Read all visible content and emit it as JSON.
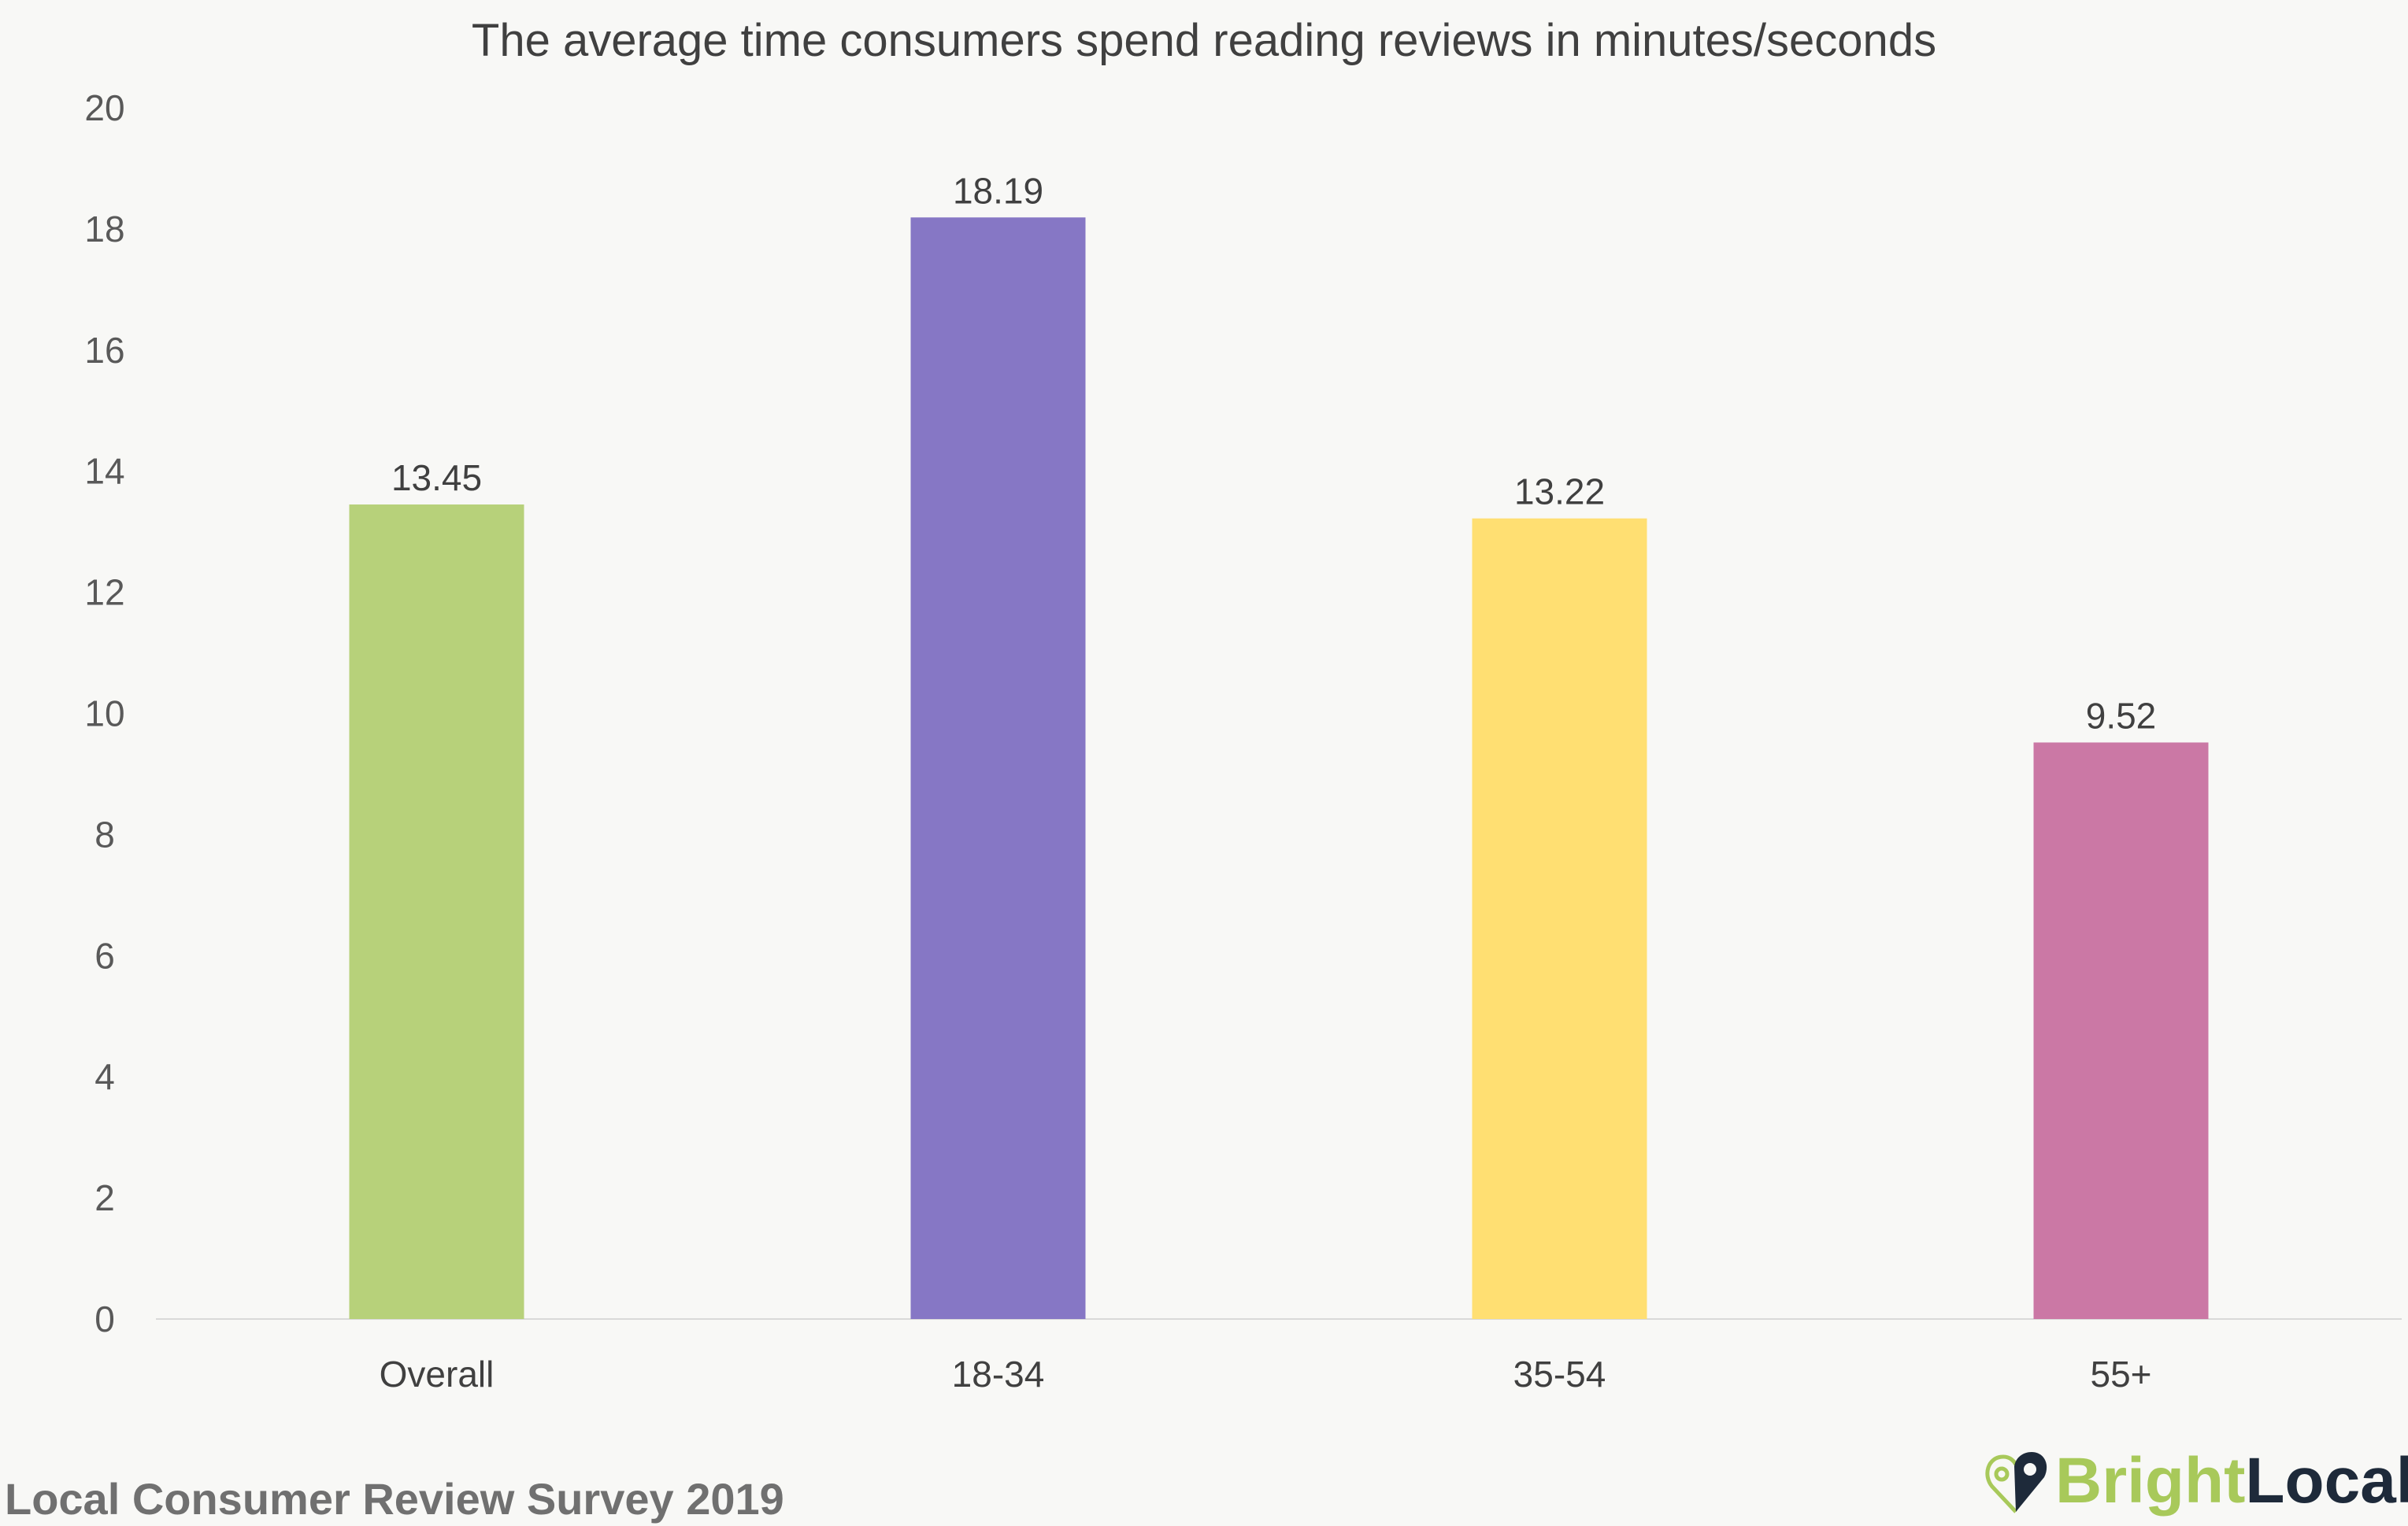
{
  "chart_data": {
    "type": "bar",
    "title": "The average time consumers spend reading reviews in minutes/seconds",
    "categories": [
      "Overall",
      "18-34",
      "35-54",
      "55+"
    ],
    "values": [
      13.45,
      18.19,
      13.22,
      9.52
    ],
    "data_labels": [
      "13.45",
      "18.19",
      "13.22",
      "9.52"
    ],
    "colors": [
      "#b7d17a",
      "#8677c5",
      "#ffdf72",
      "#cb78a5"
    ],
    "ylim": [
      0,
      20
    ],
    "yticks": [
      "0",
      "2",
      "4",
      "6",
      "8",
      "10",
      "12",
      "14",
      "16",
      "18",
      "20"
    ],
    "xlabel": "",
    "ylabel": "",
    "grid": false,
    "legend": "none"
  },
  "footer": {
    "source": "Local Consumer Review Survey 2019",
    "logo": {
      "part1": "Bright",
      "part2": "Local",
      "icon": "map-pin-heart-icon"
    }
  }
}
